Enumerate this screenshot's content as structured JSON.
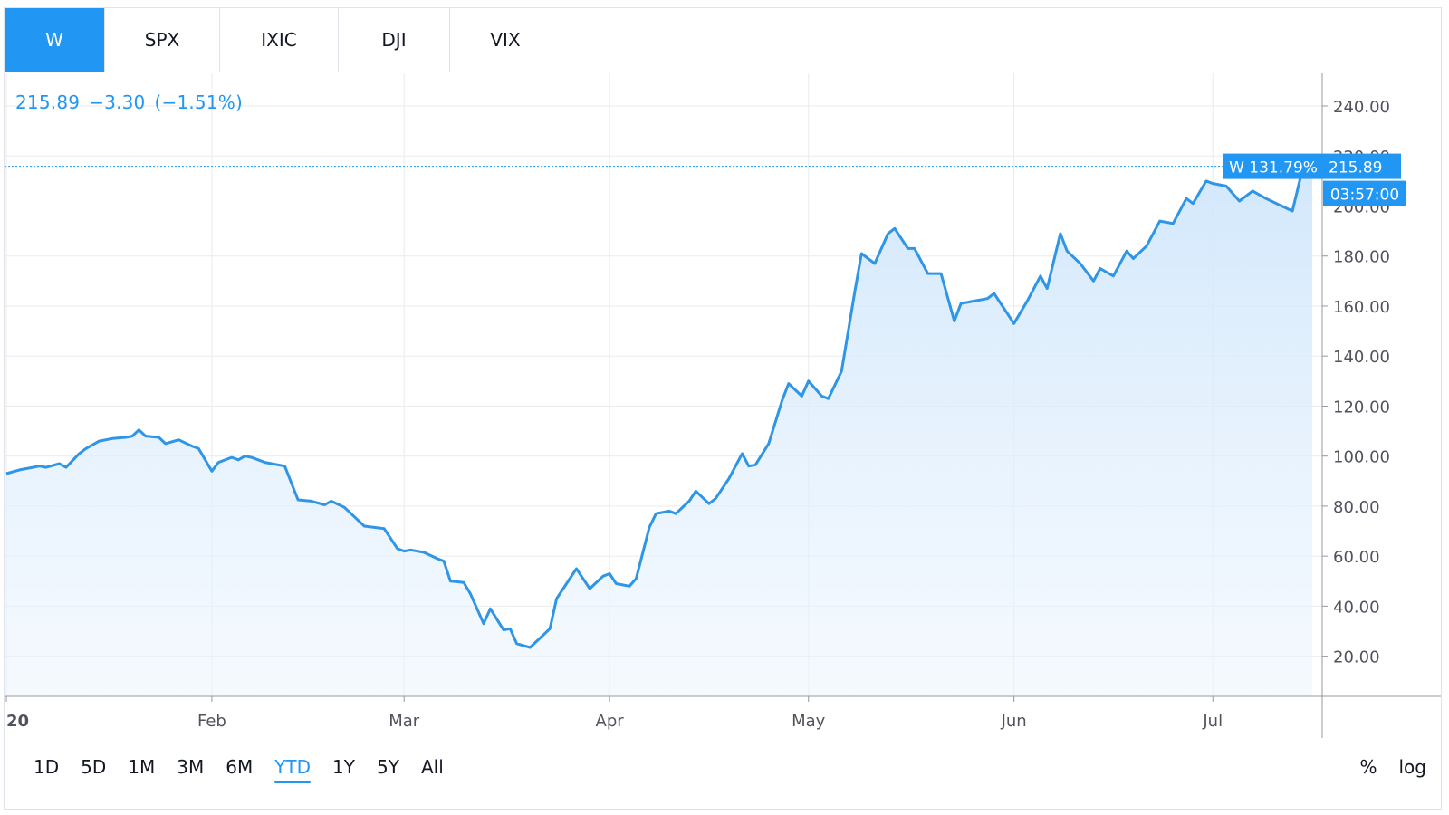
{
  "tabs": [
    {
      "label": "W",
      "active": true
    },
    {
      "label": "SPX",
      "active": false
    },
    {
      "label": "IXIC",
      "active": false
    },
    {
      "label": "DJI",
      "active": false
    },
    {
      "label": "VIX",
      "active": false
    }
  ],
  "quote": {
    "price": "215.89",
    "change": "−3.30",
    "change_pct": "(−1.51%)"
  },
  "ranges": [
    {
      "label": "1D",
      "active": false
    },
    {
      "label": "5D",
      "active": false
    },
    {
      "label": "1M",
      "active": false
    },
    {
      "label": "3M",
      "active": false
    },
    {
      "label": "6M",
      "active": false
    },
    {
      "label": "YTD",
      "active": true
    },
    {
      "label": "1Y",
      "active": false
    },
    {
      "label": "5Y",
      "active": false
    },
    {
      "label": "All",
      "active": false
    }
  ],
  "scale_toggles": {
    "percent": "%",
    "log": "log"
  },
  "colors": {
    "accent": "#2196f3",
    "line": "#2f95e6",
    "fill_top": "#cfe6fb",
    "grid": "#e9ebf0"
  },
  "chart_data": {
    "type": "area",
    "symbol": "W",
    "x_ticks": [
      {
        "label": "20",
        "day": 0
      },
      {
        "label": "Feb",
        "day": 31
      },
      {
        "label": "Mar",
        "day": 60
      },
      {
        "label": "Apr",
        "day": 91
      },
      {
        "label": "May",
        "day": 121
      },
      {
        "label": "Jun",
        "day": 152
      },
      {
        "label": "Jul",
        "day": 182
      }
    ],
    "x_range": [
      0,
      197
    ],
    "y_ticks": [
      "20.00",
      "40.00",
      "60.00",
      "80.00",
      "100.00",
      "120.00",
      "140.00",
      "160.00",
      "180.00",
      "200.00",
      "220.00",
      "240.00"
    ],
    "ylim": [
      4,
      250
    ],
    "last_label": {
      "series": "W 131.79%",
      "price": "215.89",
      "time": "03:57:00"
    },
    "series": [
      {
        "name": "W",
        "points": [
          [
            0,
            93
          ],
          [
            2,
            94.5
          ],
          [
            4,
            95.5
          ],
          [
            5,
            96
          ],
          [
            6,
            95.5
          ],
          [
            8,
            97
          ],
          [
            9,
            95.5
          ],
          [
            11,
            101
          ],
          [
            12,
            103
          ],
          [
            14,
            106
          ],
          [
            16,
            107
          ],
          [
            18,
            107.5
          ],
          [
            19,
            108
          ],
          [
            20,
            110.5
          ],
          [
            21,
            108
          ],
          [
            23,
            107.5
          ],
          [
            24,
            105
          ],
          [
            26,
            106.5
          ],
          [
            28,
            104
          ],
          [
            29,
            103
          ],
          [
            31,
            94
          ],
          [
            32,
            97.5
          ],
          [
            34,
            99.5
          ],
          [
            35,
            98.5
          ],
          [
            36,
            100
          ],
          [
            37,
            99.5
          ],
          [
            39,
            97.5
          ],
          [
            42,
            96
          ],
          [
            44,
            82.5
          ],
          [
            46,
            82
          ],
          [
            48,
            80.5
          ],
          [
            49,
            82
          ],
          [
            51,
            79.5
          ],
          [
            52,
            77
          ],
          [
            54,
            72
          ],
          [
            57,
            71
          ],
          [
            59,
            63
          ],
          [
            60,
            62
          ],
          [
            61,
            62.5
          ],
          [
            63,
            61.5
          ],
          [
            65,
            59
          ],
          [
            66,
            58
          ],
          [
            67,
            50
          ],
          [
            69,
            49.5
          ],
          [
            70,
            45
          ],
          [
            72,
            33
          ],
          [
            73,
            39
          ],
          [
            75,
            30.5
          ],
          [
            76,
            31
          ],
          [
            77,
            25
          ],
          [
            79,
            23.5
          ],
          [
            80,
            26
          ],
          [
            82,
            31
          ],
          [
            83,
            43
          ],
          [
            85,
            51
          ],
          [
            86,
            55
          ],
          [
            88,
            47
          ],
          [
            90,
            52
          ],
          [
            91,
            53
          ],
          [
            92,
            49
          ],
          [
            94,
            48
          ],
          [
            95,
            51
          ],
          [
            97,
            71.5
          ],
          [
            98,
            77
          ],
          [
            100,
            78
          ],
          [
            101,
            77
          ],
          [
            103,
            82
          ],
          [
            104,
            86
          ],
          [
            106,
            81
          ],
          [
            107,
            83
          ],
          [
            109,
            91
          ],
          [
            111,
            101
          ],
          [
            112,
            96
          ],
          [
            113,
            96.5
          ],
          [
            115,
            105
          ],
          [
            117,
            122
          ],
          [
            118,
            129
          ],
          [
            120,
            124
          ],
          [
            121,
            130
          ],
          [
            123,
            124
          ],
          [
            124,
            123
          ],
          [
            126,
            134
          ],
          [
            128,
            166
          ],
          [
            129,
            181
          ],
          [
            131,
            177
          ],
          [
            133,
            189
          ],
          [
            134,
            191
          ],
          [
            136,
            183
          ],
          [
            137,
            183
          ],
          [
            139,
            173
          ],
          [
            141,
            173
          ],
          [
            143,
            154
          ],
          [
            144,
            161
          ],
          [
            146,
            162
          ],
          [
            148,
            163
          ],
          [
            149,
            165
          ],
          [
            151,
            157
          ],
          [
            152,
            153
          ],
          [
            154,
            162
          ],
          [
            156,
            172
          ],
          [
            157,
            167
          ],
          [
            159,
            189
          ],
          [
            160,
            182
          ],
          [
            162,
            177
          ],
          [
            164,
            170
          ],
          [
            165,
            175
          ],
          [
            167,
            172
          ],
          [
            169,
            182
          ],
          [
            170,
            179
          ],
          [
            172,
            184
          ],
          [
            174,
            194
          ],
          [
            176,
            193
          ],
          [
            178,
            203
          ],
          [
            179,
            201
          ],
          [
            181,
            210
          ],
          [
            182,
            209
          ],
          [
            184,
            208
          ],
          [
            186,
            202
          ],
          [
            188,
            206
          ],
          [
            190,
            203
          ],
          [
            192,
            200.5
          ],
          [
            194,
            198
          ],
          [
            196,
            220
          ],
          [
            197,
            217
          ]
        ]
      }
    ]
  }
}
